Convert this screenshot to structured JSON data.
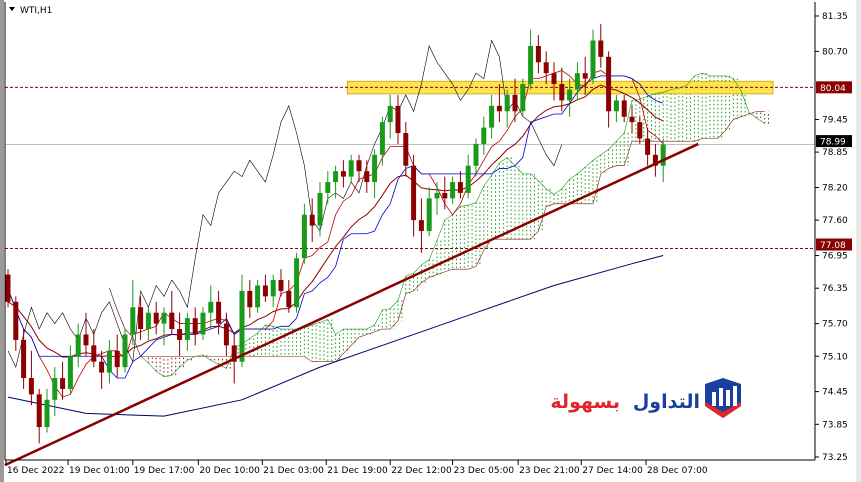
{
  "window": {
    "symbol_title": "WTI,H1"
  },
  "logo": {
    "text_blue": "التداول",
    "text_red": "بسهولة",
    "colors": {
      "blue": "#1b3f9e",
      "red": "#e0262b"
    }
  },
  "chart_data": {
    "type": "candlestick",
    "symbol": "WTI",
    "timeframe": "H1",
    "ylim": [
      73.25,
      81.35
    ],
    "y_ticks": [
      "81.35",
      "80.70",
      "79.45",
      "78.85",
      "78.20",
      "77.60",
      "76.95",
      "76.35",
      "75.70",
      "75.10",
      "74.45",
      "73.85",
      "73.25"
    ],
    "x_ticks": [
      {
        "label": "16 Dec 2022",
        "index": 0
      },
      {
        "label": "19 Dec 01:00",
        "index": 7.7
      },
      {
        "label": "19 Dec 17:00",
        "index": 16
      },
      {
        "label": "20 Dec 10:00",
        "index": 24.4
      },
      {
        "label": "21 Dec 03:00",
        "index": 32.6
      },
      {
        "label": "21 Dec 19:00",
        "index": 40.8
      },
      {
        "label": "22 Dec 12:00",
        "index": 49
      },
      {
        "label": "23 Dec 05:00",
        "index": 57
      },
      {
        "label": "23 Dec 21:00",
        "index": 65.4
      },
      {
        "label": "27 Dec 14:00",
        "index": 73.5
      },
      {
        "label": "28 Dec 07:00",
        "index": 81.8
      }
    ],
    "price_labels": [
      {
        "value": "80.04",
        "price": 80.04,
        "color": "#8b0000"
      },
      {
        "value": "77.08",
        "price": 77.08,
        "color": "#8b0000"
      },
      {
        "value": "78.99",
        "price": 78.99,
        "color": "#000000"
      }
    ],
    "horizontal_lines": [
      {
        "price": 80.04,
        "style": "dashed",
        "color": "#8b0000"
      },
      {
        "price": 77.08,
        "style": "dashed",
        "color": "#8b0000"
      },
      {
        "price": 78.99,
        "style": "solid",
        "color": "#c0c0c0"
      }
    ],
    "zone": {
      "from_price": 79.92,
      "to_price": 80.15,
      "from_index": 43.5,
      "color": "#ffe033"
    },
    "trendline": {
      "points": [
        [
          -0.4,
          73.1
        ],
        [
          88.5,
          79.0
        ]
      ],
      "color": "#8b0000"
    },
    "ichimoku": {
      "tenkan": 5,
      "kijun": 13,
      "senkou_b": 26,
      "shift": 13,
      "colors": {
        "tenkan": "#c00000",
        "kijun": "#0000c8",
        "chikou": "#000000",
        "cloud_up": "#1a9a1a",
        "cloud_down": "#8b1a1a"
      }
    },
    "ma_fast": {
      "type": "ema",
      "period": 14,
      "color": "#8b0000"
    },
    "ma_slow": {
      "color": "#00006e",
      "points": [
        [
          0,
          74.35
        ],
        [
          10,
          74.05
        ],
        [
          20,
          74.0
        ],
        [
          30,
          74.3
        ],
        [
          40,
          74.9
        ],
        [
          50,
          75.4
        ],
        [
          60,
          75.9
        ],
        [
          70,
          76.4
        ],
        [
          80,
          76.8
        ],
        [
          84,
          76.95
        ]
      ]
    },
    "colors": {
      "bull": "#1a9a1a",
      "bear": "#8b0000"
    },
    "candles": [
      [
        76.6,
        76.7,
        76.0,
        76.1
      ],
      [
        76.1,
        76.2,
        75.2,
        75.4
      ],
      [
        75.4,
        75.6,
        74.5,
        74.7
      ],
      [
        74.7,
        75.2,
        74.2,
        74.4
      ],
      [
        74.4,
        74.5,
        73.5,
        73.8
      ],
      [
        73.8,
        74.5,
        73.7,
        74.3
      ],
      [
        74.3,
        74.9,
        74.0,
        74.7
      ],
      [
        74.7,
        75.0,
        74.3,
        74.5
      ],
      [
        74.5,
        75.3,
        74.4,
        75.1
      ],
      [
        75.1,
        75.7,
        74.9,
        75.5
      ],
      [
        75.5,
        75.9,
        75.1,
        75.3
      ],
      [
        75.3,
        75.6,
        74.9,
        75.0
      ],
      [
        75.0,
        75.2,
        74.5,
        74.8
      ],
      [
        74.8,
        75.4,
        74.6,
        75.2
      ],
      [
        75.2,
        75.5,
        74.7,
        74.9
      ],
      [
        74.9,
        75.6,
        74.8,
        75.5
      ],
      [
        75.5,
        76.5,
        75.3,
        76.0
      ],
      [
        76.0,
        76.2,
        75.4,
        75.6
      ],
      [
        75.6,
        76.0,
        75.4,
        75.9
      ],
      [
        75.9,
        76.1,
        75.5,
        75.7
      ],
      [
        75.7,
        76.0,
        75.3,
        75.9
      ],
      [
        75.9,
        76.3,
        75.5,
        75.6
      ],
      [
        75.6,
        75.9,
        75.1,
        75.4
      ],
      [
        75.4,
        75.9,
        75.2,
        75.8
      ],
      [
        75.8,
        76.0,
        75.3,
        75.5
      ],
      [
        75.5,
        76.0,
        75.4,
        75.9
      ],
      [
        75.9,
        76.4,
        75.6,
        76.1
      ],
      [
        76.1,
        76.3,
        75.5,
        75.7
      ],
      [
        75.7,
        75.9,
        75.1,
        75.3
      ],
      [
        75.3,
        75.5,
        74.6,
        75.0
      ],
      [
        75.0,
        76.6,
        74.9,
        76.3
      ],
      [
        76.3,
        76.5,
        75.8,
        76.0
      ],
      [
        76.0,
        76.5,
        75.9,
        76.4
      ],
      [
        76.4,
        76.6,
        76.1,
        76.2
      ],
      [
        76.2,
        76.6,
        76.0,
        76.5
      ],
      [
        76.5,
        76.7,
        76.2,
        76.3
      ],
      [
        76.3,
        76.5,
        75.9,
        76.0
      ],
      [
        76.0,
        77.0,
        75.9,
        76.9
      ],
      [
        76.9,
        77.9,
        76.8,
        77.7
      ],
      [
        77.7,
        78.0,
        77.2,
        77.5
      ],
      [
        77.5,
        78.3,
        77.3,
        78.1
      ],
      [
        78.1,
        78.5,
        77.9,
        78.3
      ],
      [
        78.3,
        78.6,
        78.0,
        78.5
      ],
      [
        78.5,
        78.7,
        78.2,
        78.4
      ],
      [
        78.4,
        78.8,
        78.3,
        78.7
      ],
      [
        78.7,
        78.8,
        78.3,
        78.5
      ],
      [
        78.5,
        78.7,
        78.1,
        78.3
      ],
      [
        78.3,
        78.9,
        78.0,
        78.8
      ],
      [
        78.8,
        79.5,
        78.6,
        79.4
      ],
      [
        79.4,
        79.9,
        79.1,
        79.7
      ],
      [
        79.7,
        79.9,
        79.0,
        79.2
      ],
      [
        79.2,
        79.4,
        78.4,
        78.6
      ],
      [
        78.6,
        78.8,
        77.3,
        77.6
      ],
      [
        77.6,
        78.0,
        77.0,
        77.4
      ],
      [
        77.4,
        78.2,
        77.3,
        78.0
      ],
      [
        78.0,
        78.3,
        77.7,
        78.1
      ],
      [
        78.1,
        78.4,
        77.8,
        78.0
      ],
      [
        78.0,
        78.4,
        77.9,
        78.3
      ],
      [
        78.3,
        78.5,
        78.0,
        78.1
      ],
      [
        78.1,
        78.8,
        78.0,
        78.6
      ],
      [
        78.6,
        79.1,
        78.4,
        79.0
      ],
      [
        79.0,
        79.5,
        78.8,
        79.3
      ],
      [
        79.3,
        79.9,
        79.1,
        79.7
      ],
      [
        79.7,
        80.1,
        79.4,
        79.6
      ],
      [
        79.6,
        80.0,
        79.3,
        79.9
      ],
      [
        79.9,
        80.2,
        79.4,
        79.6
      ],
      [
        79.6,
        80.2,
        79.5,
        80.1
      ],
      [
        80.1,
        81.1,
        80.0,
        80.8
      ],
      [
        80.8,
        81.0,
        80.3,
        80.5
      ],
      [
        80.5,
        80.7,
        80.1,
        80.3
      ],
      [
        80.3,
        80.5,
        79.8,
        80.1
      ],
      [
        80.1,
        80.4,
        79.6,
        79.8
      ],
      [
        79.8,
        80.2,
        79.5,
        80.0
      ],
      [
        80.0,
        80.5,
        79.8,
        80.3
      ],
      [
        80.3,
        80.6,
        79.9,
        80.2
      ],
      [
        80.2,
        81.1,
        80.1,
        80.9
      ],
      [
        80.9,
        81.2,
        80.4,
        80.6
      ],
      [
        80.6,
        80.7,
        79.3,
        79.6
      ],
      [
        79.6,
        79.9,
        79.4,
        79.8
      ],
      [
        79.8,
        79.9,
        79.4,
        79.5
      ],
      [
        79.5,
        79.7,
        79.2,
        79.4
      ],
      [
        79.4,
        79.5,
        79.0,
        79.1
      ],
      [
        79.1,
        79.3,
        78.6,
        78.8
      ],
      [
        78.8,
        79.0,
        78.4,
        78.6
      ],
      [
        78.6,
        79.1,
        78.3,
        78.99
      ]
    ]
  }
}
